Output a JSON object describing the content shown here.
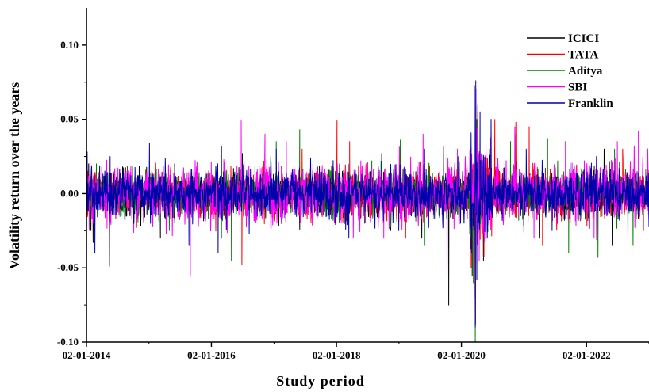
{
  "chart_data": {
    "type": "line",
    "xlabel": "Study period",
    "ylabel": "Volatility return over the years",
    "ylim": [
      -0.1,
      0.125
    ],
    "yticks": [
      -0.1,
      -0.05,
      0.0,
      0.05,
      0.1
    ],
    "ytick_labels": [
      "-0.10",
      "-0.05",
      "0.00",
      "0.05",
      "0.10"
    ],
    "xlim": [
      "2014-01-02",
      "2023-01-02"
    ],
    "xticks": [
      "2014-01-02",
      "2016-01-02",
      "2018-01-02",
      "2020-01-02",
      "2022-01-02"
    ],
    "xtick_labels": [
      "02-01-2014",
      "02-01-2016",
      "02-01-2018",
      "02-01-2020",
      "02-01-2022"
    ],
    "legend_position": "top-right",
    "grid": false,
    "series": [
      {
        "name": "ICICI",
        "color": "#000000",
        "typical_range": 0.012,
        "points": [
          [
            "2014-01-02",
            0.0
          ],
          [
            "2014-01-15",
            0.02
          ],
          [
            "2014-01-28",
            -0.025
          ],
          [
            "2014-02-10",
            -0.033
          ],
          [
            "2014-08-01",
            0.018
          ],
          [
            "2015-03-10",
            -0.03
          ],
          [
            "2015-06-01",
            0.02
          ],
          [
            "2016-07-01",
            0.027
          ],
          [
            "2017-06-01",
            -0.024
          ],
          [
            "2018-02-05",
            0.015
          ],
          [
            "2018-11-15",
            -0.025
          ],
          [
            "2019-05-15",
            -0.03
          ],
          [
            "2019-09-20",
            0.032
          ],
          [
            "2019-10-20",
            -0.075
          ],
          [
            "2020-03-05",
            -0.055
          ],
          [
            "2020-03-16",
            0.07
          ],
          [
            "2020-03-24",
            -0.088
          ],
          [
            "2020-04-07",
            0.06
          ],
          [
            "2020-05-10",
            -0.045
          ],
          [
            "2020-06-15",
            0.03
          ],
          [
            "2020-11-10",
            0.04
          ],
          [
            "2021-04-01",
            -0.03
          ],
          [
            "2022-04-15",
            0.03
          ],
          [
            "2022-06-01",
            -0.035
          ]
        ]
      },
      {
        "name": "TATA",
        "color": "#ff0000",
        "typical_range": 0.014,
        "points": [
          [
            "2014-01-10",
            0.015
          ],
          [
            "2015-02-10",
            0.02
          ],
          [
            "2016-06-28",
            -0.048
          ],
          [
            "2017-06-15",
            0.03
          ],
          [
            "2018-01-05",
            0.049
          ],
          [
            "2018-03-20",
            0.035
          ],
          [
            "2019-02-10",
            -0.03
          ],
          [
            "2020-02-28",
            -0.05
          ],
          [
            "2020-03-17",
            0.073
          ],
          [
            "2020-03-24",
            -0.085
          ],
          [
            "2020-04-07",
            0.055
          ],
          [
            "2020-07-15",
            0.05
          ],
          [
            "2020-11-15",
            0.048
          ],
          [
            "2021-02-01",
            0.045
          ],
          [
            "2021-04-20",
            -0.035
          ],
          [
            "2022-08-01",
            0.03
          ],
          [
            "2022-12-01",
            -0.025
          ]
        ]
      },
      {
        "name": "Aditya",
        "color": "#008000",
        "typical_range": 0.013,
        "points": [
          [
            "2014-03-01",
            0.02
          ],
          [
            "2015-05-01",
            -0.025
          ],
          [
            "2016-03-01",
            -0.03
          ],
          [
            "2016-04-28",
            -0.045
          ],
          [
            "2017-01-15",
            0.035
          ],
          [
            "2017-06-01",
            0.043
          ],
          [
            "2018-06-15",
            -0.02
          ],
          [
            "2019-01-10",
            0.036
          ],
          [
            "2019-06-01",
            -0.035
          ],
          [
            "2020-03-12",
            -0.06
          ],
          [
            "2020-03-23",
            -0.1
          ],
          [
            "2020-04-01",
            0.05
          ],
          [
            "2020-10-15",
            0.035
          ],
          [
            "2021-05-20",
            0.037
          ],
          [
            "2021-09-20",
            -0.04
          ],
          [
            "2022-03-10",
            -0.043
          ],
          [
            "2022-06-15",
            0.03
          ],
          [
            "2022-10-01",
            -0.035
          ]
        ]
      },
      {
        "name": "SBI",
        "color": "#ff00ff",
        "typical_range": 0.018,
        "points": [
          [
            "2014-04-01",
            0.018
          ],
          [
            "2015-09-01",
            -0.055
          ],
          [
            "2016-06-24",
            0.049
          ],
          [
            "2016-11-10",
            0.04
          ],
          [
            "2017-03-15",
            0.035
          ],
          [
            "2018-04-10",
            -0.03
          ],
          [
            "2018-10-05",
            -0.03
          ],
          [
            "2019-05-23",
            0.04
          ],
          [
            "2019-10-10",
            -0.06
          ],
          [
            "2019-12-10",
            0.03
          ],
          [
            "2020-03-16",
            -0.07
          ],
          [
            "2020-03-27",
            0.07
          ],
          [
            "2020-04-15",
            -0.045
          ],
          [
            "2020-11-09",
            0.045
          ],
          [
            "2021-03-01",
            -0.03
          ],
          [
            "2021-09-01",
            0.035
          ],
          [
            "2022-02-15",
            -0.03
          ],
          [
            "2022-07-01",
            0.035
          ],
          [
            "2022-11-01",
            0.042
          ]
        ]
      },
      {
        "name": "Franklin",
        "color": "#0000aa",
        "typical_range": 0.015,
        "points": [
          [
            "2014-01-06",
            0.028
          ],
          [
            "2014-02-20",
            -0.04
          ],
          [
            "2014-05-16",
            -0.049
          ],
          [
            "2014-05-20",
            0.025
          ],
          [
            "2015-01-05",
            0.034
          ],
          [
            "2015-08-24",
            -0.035
          ],
          [
            "2016-02-10",
            -0.04
          ],
          [
            "2016-03-01",
            0.032
          ],
          [
            "2017-01-15",
            0.03
          ],
          [
            "2018-01-20",
            0.02
          ],
          [
            "2018-03-15",
            -0.03
          ],
          [
            "2019-01-01",
            -0.025
          ],
          [
            "2019-06-01",
            0.03
          ],
          [
            "2020-03-01",
            -0.04
          ],
          [
            "2020-03-18",
            0.072
          ],
          [
            "2020-03-23",
            -0.09
          ],
          [
            "2020-03-26",
            0.076
          ],
          [
            "2020-04-01",
            -0.058
          ],
          [
            "2020-04-20",
            0.055
          ],
          [
            "2020-06-01",
            -0.03
          ],
          [
            "2021-01-15",
            0.03
          ],
          [
            "2021-06-15",
            -0.025
          ],
          [
            "2022-03-01",
            0.025
          ],
          [
            "2022-09-01",
            -0.03
          ]
        ]
      }
    ]
  }
}
